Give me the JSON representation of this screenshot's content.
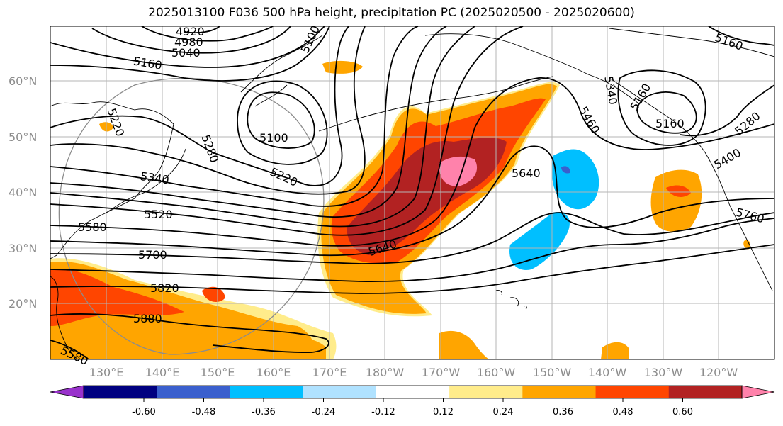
{
  "title": "2025013100 F036 500 hPa height, precipitation PC (2025020500 - 2025020600)",
  "lat_labels": [
    "60°N",
    "50°N",
    "40°N",
    "30°N",
    "20°N"
  ],
  "lon_labels": [
    "130°E",
    "140°E",
    "150°E",
    "160°E",
    "170°E",
    "180°W",
    "170°W",
    "160°W",
    "150°W",
    "140°W",
    "130°W",
    "120°W"
  ],
  "contour_labels": [
    "4920",
    "4980",
    "5040",
    "5100",
    "5160",
    "5160",
    "5220",
    "5220",
    "5280",
    "5280",
    "5340",
    "5340",
    "5400",
    "5460",
    "5520",
    "5580",
    "5640",
    "5640",
    "5700",
    "5760",
    "5820",
    "5880",
    "5100",
    "5160",
    "5160",
    "5580"
  ],
  "colorbar": {
    "labels": [
      "-0.60",
      "-0.48",
      "-0.36",
      "-0.24",
      "-0.12",
      "0.12",
      "0.24",
      "0.36",
      "0.48",
      "0.60"
    ],
    "colors": [
      "#9932cc",
      "#000080",
      "#3a5fcd",
      "#00bfff",
      "#b0e2ff",
      "#ffffff",
      "#ffec8b",
      "#ffa500",
      "#ff4500",
      "#b22222",
      "#ff82ab"
    ]
  },
  "colors": {
    "shade_yellow": "#ffec8b",
    "shade_orange": "#ffa500",
    "shade_redorange": "#ff4500",
    "shade_darkred": "#b22222",
    "shade_pink": "#ff82ab",
    "shade_cyan": "#00bfff",
    "shade_blue": "#3a5fcd"
  }
}
